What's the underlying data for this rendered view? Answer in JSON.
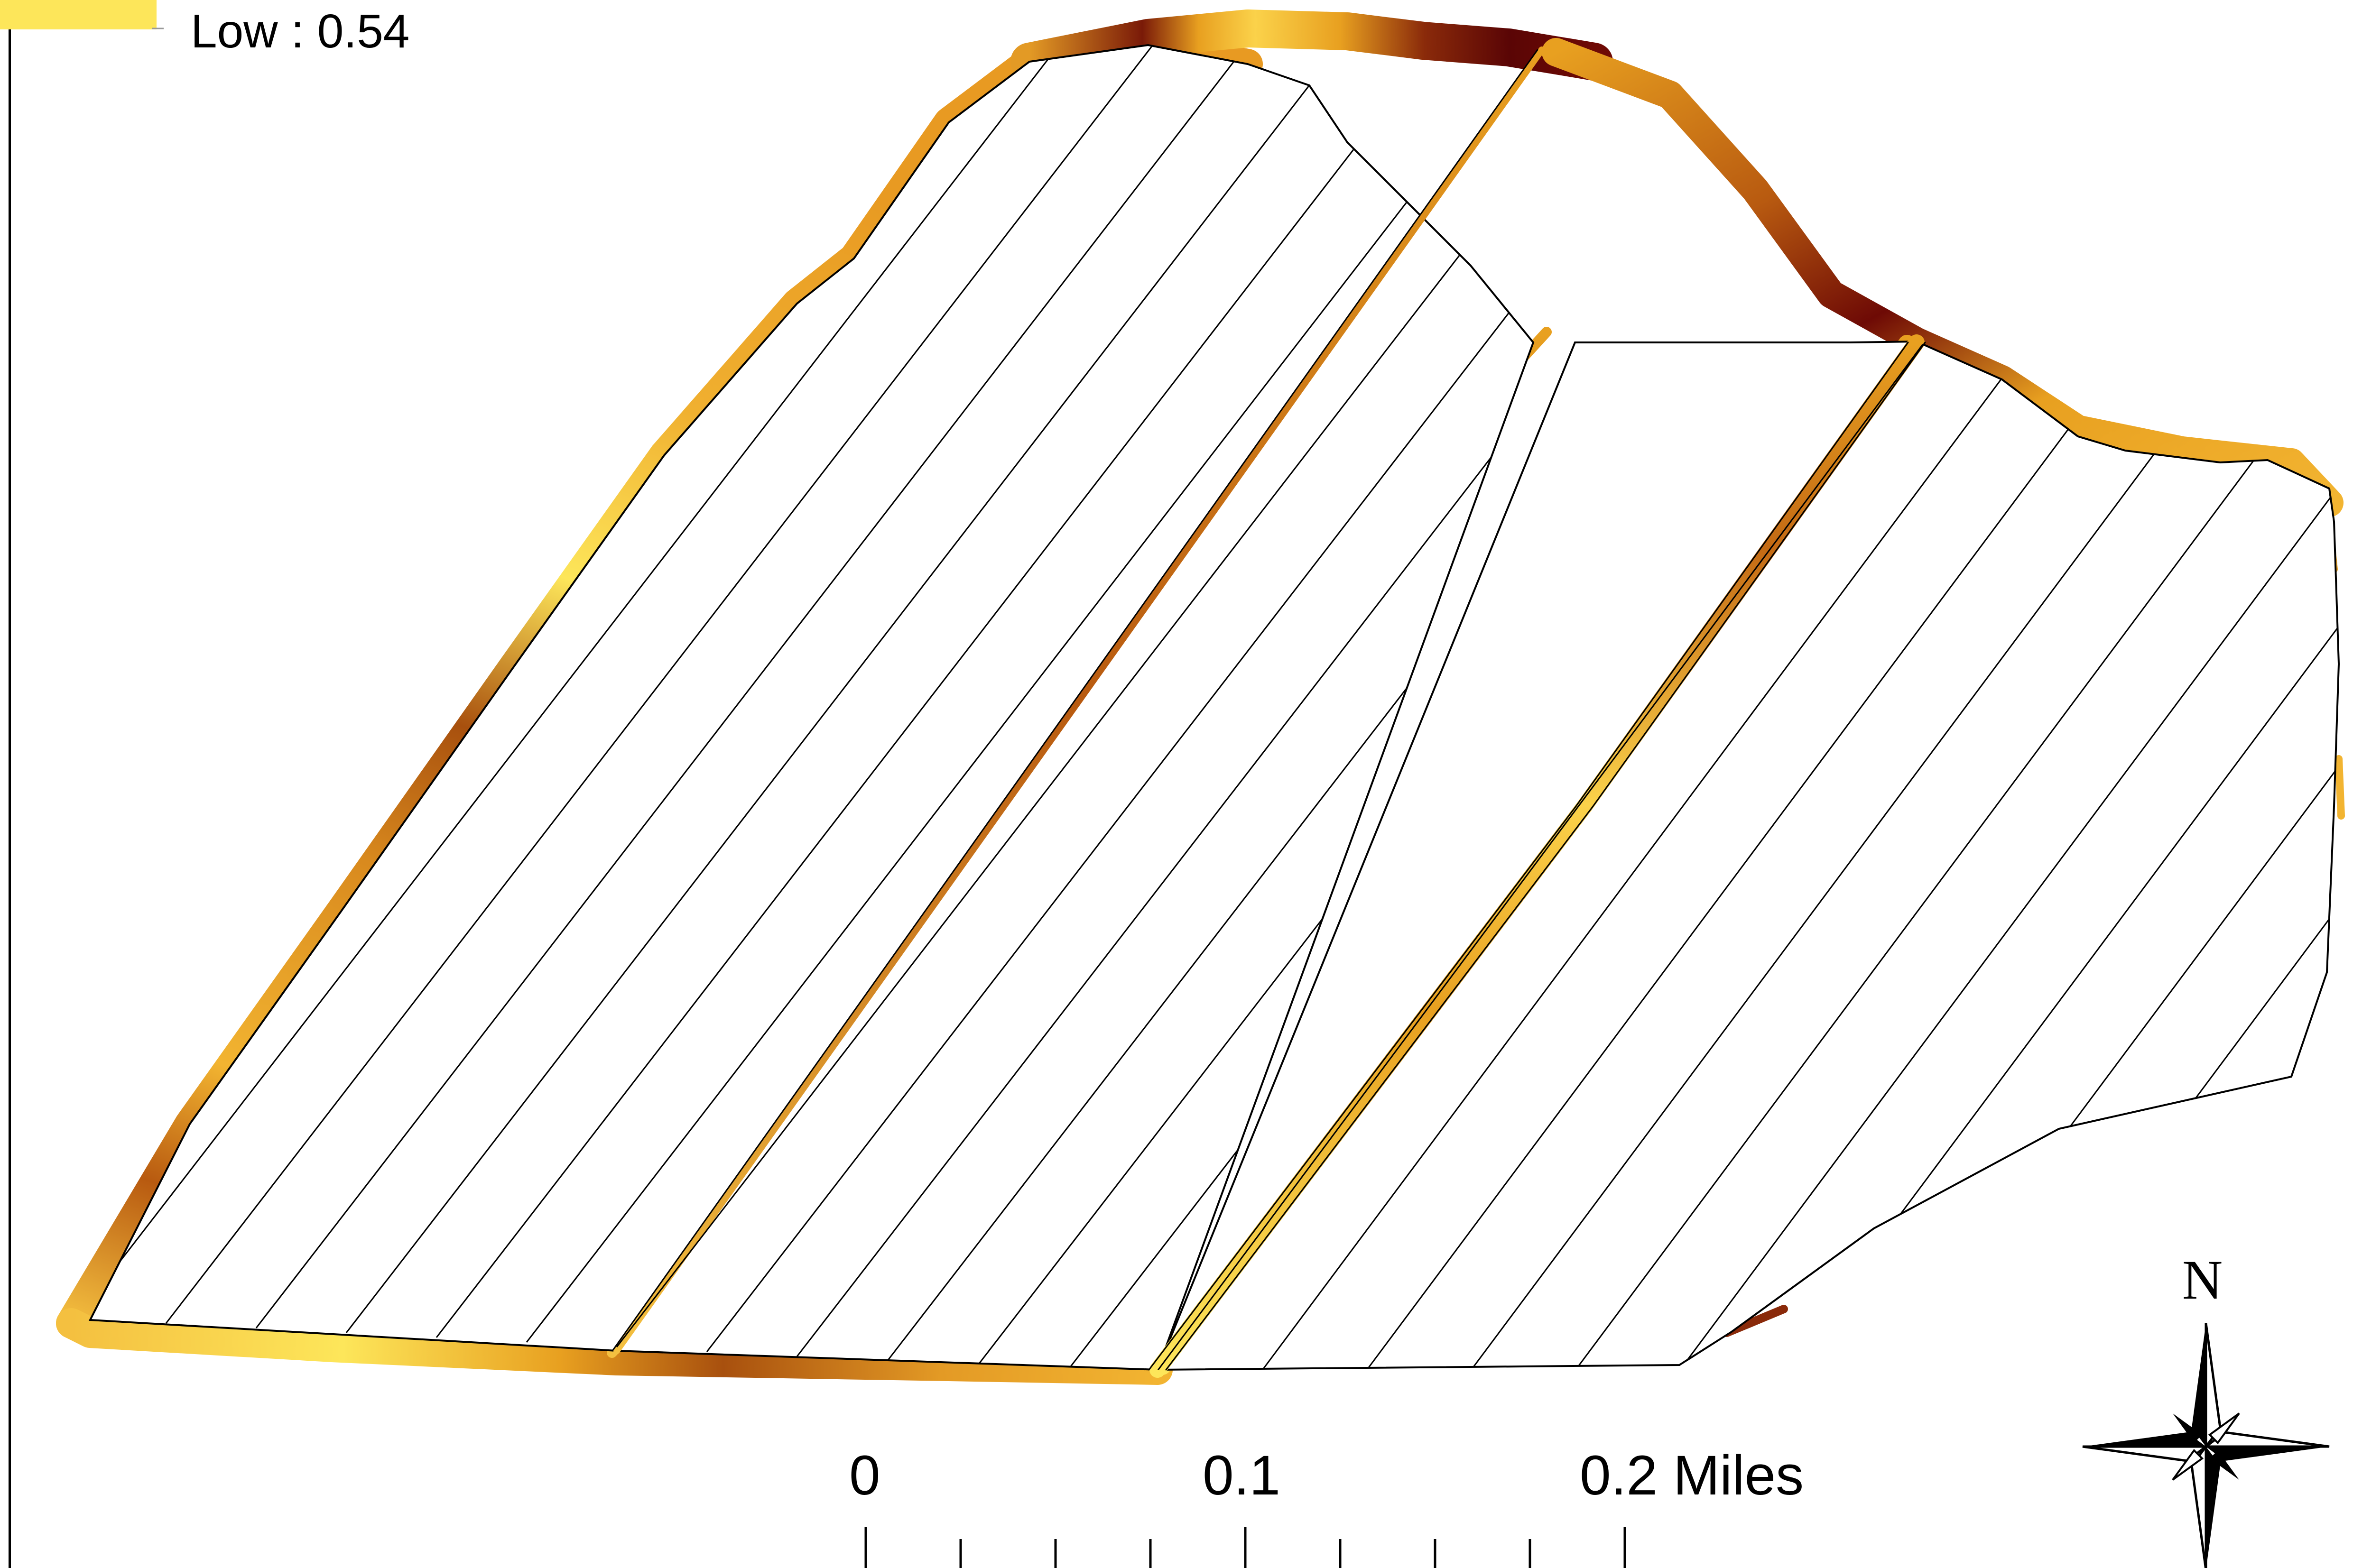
{
  "legend": {
    "low_label": "Low : 0.54"
  },
  "scale_bar": {
    "labels": [
      "0",
      "0.1",
      "0.2 Miles"
    ]
  },
  "north_arrow": {
    "label": "N"
  },
  "colors": {
    "ramp_low": "#fde65a",
    "ramp_mid": "#e8a020",
    "ramp_high": "#6e0a05",
    "hatch": "#000000",
    "background": "#ffffff"
  }
}
